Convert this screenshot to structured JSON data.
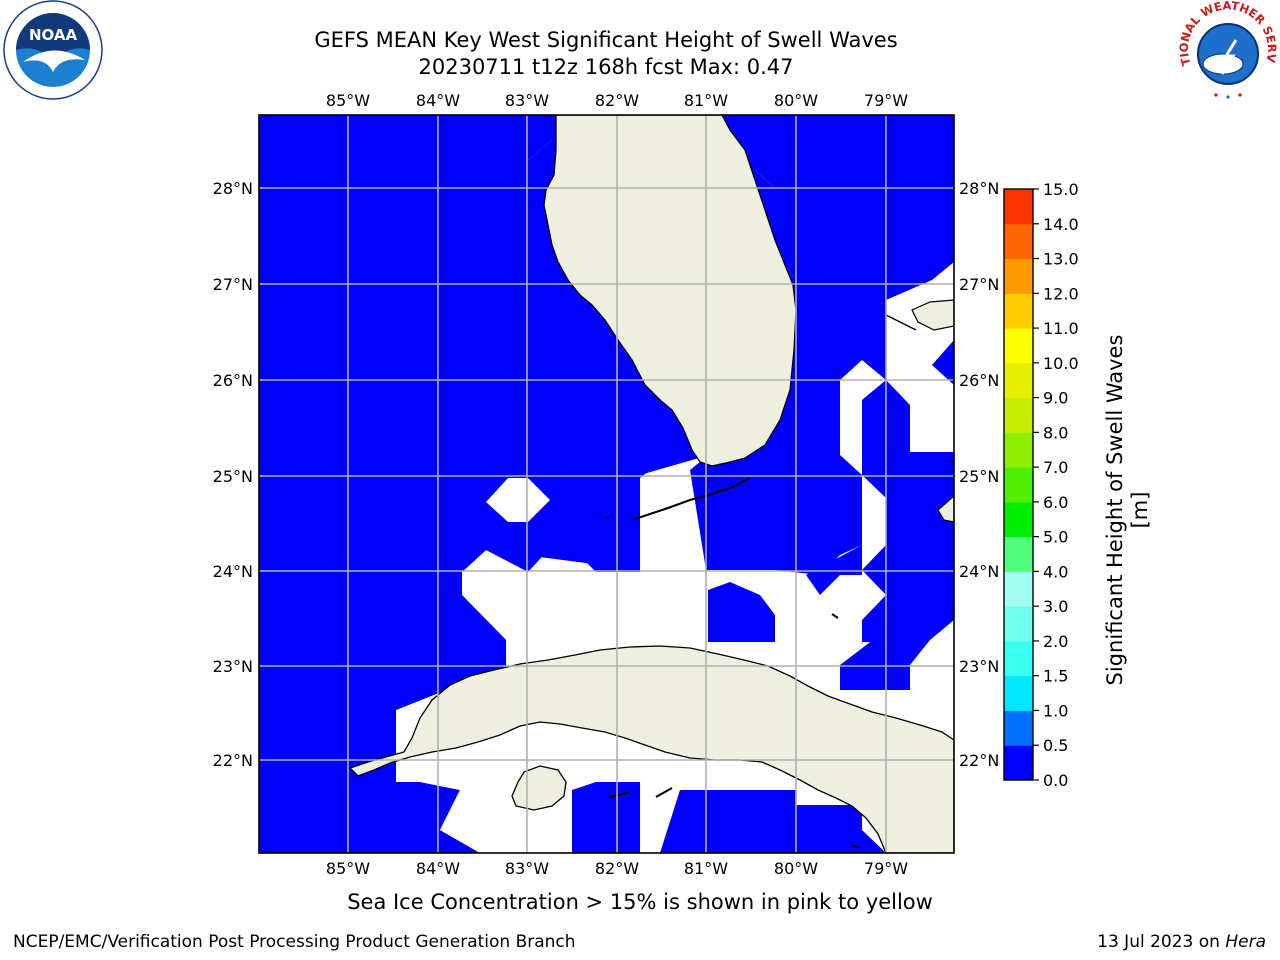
{
  "header": {
    "title_line1": "GEFS MEAN Key West Significant Height of Swell Waves",
    "title_line2": "20230711 t12z 168h fcst   Max: 0.47"
  },
  "map": {
    "lon_labels": [
      "85°W",
      "84°W",
      "83°W",
      "82°W",
      "81°W",
      "80°W",
      "79°W"
    ],
    "lat_labels": [
      "28°N",
      "27°N",
      "26°N",
      "25°N",
      "24°N",
      "23°N",
      "22°N"
    ],
    "colors": {
      "ocean": "#0000ff",
      "land": "#efefdf",
      "grid": "#b0b0b0",
      "nodata": "#ffffff"
    }
  },
  "colorbar": {
    "label": "Significant Height of Swell Waves [m]",
    "ticks": [
      "0.0",
      "0.5",
      "1.0",
      "1.5",
      "2.0",
      "3.0",
      "4.0",
      "5.0",
      "6.0",
      "7.0",
      "8.0",
      "9.0",
      "10.0",
      "11.0",
      "12.0",
      "13.0",
      "14.0",
      "15.0"
    ],
    "colors": [
      "#0000ff",
      "#0070ff",
      "#00e8ff",
      "#38ffee",
      "#6effee",
      "#a0ffee",
      "#50ff80",
      "#00ee00",
      "#50ee00",
      "#90ee00",
      "#c8ee00",
      "#e8ee00",
      "#ffff00",
      "#ffcc00",
      "#ff9900",
      "#ff6600",
      "#ff3300",
      "#ff0000"
    ]
  },
  "logos": {
    "noaa_text": "NOAA",
    "nws_text": "NATIONAL WEATHER SERVICE"
  },
  "note": "Sea Ice Concentration > 15% is shown in pink to yellow",
  "footer": {
    "left": "NCEP/EMC/Verification Post Processing Product Generation Branch",
    "right_prefix": "13 Jul 2023 on ",
    "right_host": "Hera"
  }
}
